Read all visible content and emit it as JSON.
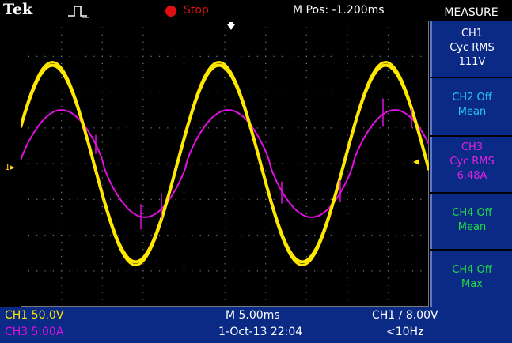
{
  "header": {
    "brand": "Tek",
    "trigger_icon": "trigger-waveform-icon",
    "run_state": "Stop",
    "run_state_color": "#e01010",
    "m_pos": "M Pos: -1.200ms"
  },
  "side_menu": {
    "title": "MEASURE",
    "items": [
      {
        "lines": [
          "CH1",
          "Cyc RMS",
          "111V"
        ],
        "color": "#ffffff"
      },
      {
        "lines": [
          "CH2 Off",
          "Mean"
        ],
        "color": "#2ac8f0"
      },
      {
        "lines": [
          "CH3",
          "Cyc RMS",
          "6.48A"
        ],
        "color": "#e020e0"
      },
      {
        "lines": [
          "CH4 Off",
          "Mean"
        ],
        "color": "#20e040"
      },
      {
        "lines": [
          "CH4 Off",
          "Max"
        ],
        "color": "#20e040"
      }
    ]
  },
  "status_bar": {
    "ch1_scale": "CH1  50.0V",
    "ch3_scale": "CH3  5.00A",
    "timebase": "M 5.00ms",
    "datetime": "1-Oct-13 22:04",
    "trigger": "CH1 ∕ 8.00V",
    "trigger_freq": "<10Hz"
  },
  "markers": {
    "ch1_marker": "1▸"
  },
  "colors": {
    "ch1": "#ffe800",
    "ch3": "#e010e0",
    "grid": "#7a7a7a",
    "panel": "#0b2a86"
  },
  "waveforms": {
    "ch1": {
      "channel": "CH1",
      "cycles_visible": 2.45,
      "peak_divisions": 2.75
    },
    "ch3": {
      "channel": "CH3",
      "cycles_visible": 2.45,
      "peak_divisions": 1.5
    }
  }
}
